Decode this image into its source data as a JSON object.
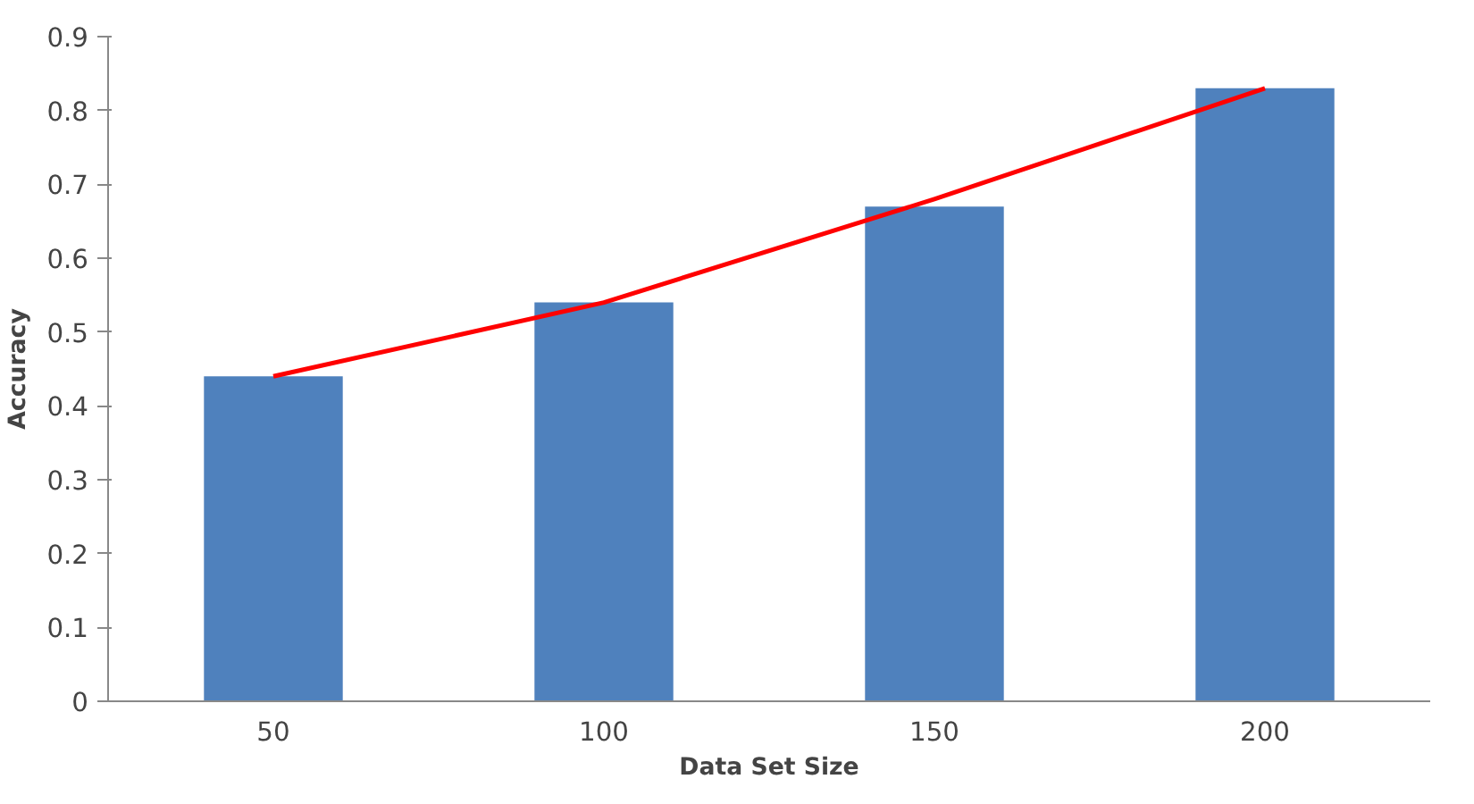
{
  "chart_data": {
    "type": "bar",
    "xlabel": "Data Set Size",
    "ylabel": "Accuracy",
    "categories": [
      "50",
      "100",
      "150",
      "200"
    ],
    "series": [
      {
        "color": "#4f81bd",
        "values": [
          0.44,
          0.54,
          0.67,
          0.83
        ]
      },
      {
        "type": "line",
        "color": "#ff0000",
        "values": [
          0.44,
          0.54,
          0.68,
          0.83
        ]
      }
    ],
    "ylim": [
      0,
      0.9
    ],
    "yticks": [
      0,
      0.1,
      0.2,
      0.3,
      0.4,
      0.5,
      0.6,
      0.7,
      0.8,
      0.9
    ],
    "grid": false
  }
}
